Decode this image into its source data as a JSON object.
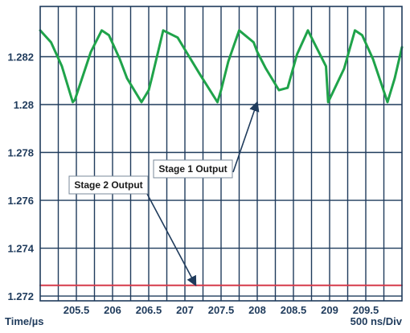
{
  "chart_data": {
    "type": "line",
    "x_axis_label": "Time/µs",
    "scale_label": "500 ns/Div",
    "x_ticks": [
      "205.5",
      "206",
      "206.5",
      "207",
      "207.5",
      "208",
      "208.5",
      "209",
      "209.5"
    ],
    "y_ticks": [
      "1.282",
      "1.28",
      "1.278",
      "1.276",
      "1.274",
      "1.272"
    ],
    "xlim": [
      205.0,
      210.0
    ],
    "ylim": [
      1.2718,
      1.2841
    ],
    "grid": true,
    "series": [
      {
        "name": "Stage 1 Output",
        "color": "#1fa34a",
        "x": [
          205.0,
          205.15,
          205.3,
          205.45,
          205.48,
          205.7,
          205.85,
          205.95,
          206.1,
          206.2,
          206.4,
          206.5,
          206.55,
          206.7,
          206.9,
          207.0,
          207.2,
          207.45,
          207.5,
          207.6,
          207.75,
          207.95,
          208.0,
          208.12,
          208.3,
          208.42,
          208.55,
          208.7,
          208.95,
          208.98,
          209.2,
          209.35,
          209.45,
          209.6,
          209.8,
          209.9,
          210.0
        ],
        "y": [
          1.2831,
          1.2826,
          1.2816,
          1.2801,
          1.2802,
          1.2822,
          1.2831,
          1.2829,
          1.2819,
          1.2811,
          1.2801,
          1.2806,
          1.2812,
          1.2831,
          1.2828,
          1.2823,
          1.2813,
          1.2801,
          1.2806,
          1.2818,
          1.2831,
          1.2826,
          1.2822,
          1.2815,
          1.2806,
          1.2807,
          1.2821,
          1.2831,
          1.2816,
          1.2801,
          1.2815,
          1.2831,
          1.2829,
          1.2819,
          1.2801,
          1.2811,
          1.2824
        ]
      },
      {
        "name": "Stage 2 Output",
        "color": "#d63a4a",
        "x": [
          205.0,
          210.0
        ],
        "y": [
          1.27245,
          1.27245
        ]
      }
    ],
    "annotations": [
      {
        "text": "Stage 1 Output",
        "target": [
          208.0,
          1.2801
        ]
      },
      {
        "text": "Stage 2 Output",
        "target": [
          207.15,
          1.27245
        ]
      }
    ]
  },
  "colors": {
    "frame": "#1f3b5c",
    "grid": "#1f3b5c",
    "stage1": "#1fa34a",
    "stage2": "#d63a4a",
    "text": "#1f3b5c"
  }
}
